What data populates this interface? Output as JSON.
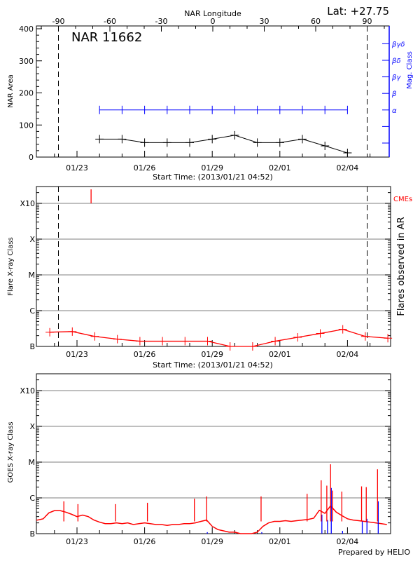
{
  "colors": {
    "area": "#000000",
    "mag_class": "#0000ff",
    "flares": "#ff0000",
    "cme": "#ff0000",
    "goes": "#ff0000",
    "goes_events": "#0000ff",
    "grid": "#999999"
  },
  "header": {
    "lat_label": "Lat: +27.75",
    "prepared_by": "Prepared by HELIO"
  },
  "chart_data": [
    {
      "type": "line",
      "title": "NAR 11662",
      "xlabel": "Start Time: (2013/01/21 04:52)",
      "ylabel": "NAR Area",
      "y2label": "Mag. Class",
      "toplabel": "NAR Longitude",
      "ylim": [
        0,
        400
      ],
      "yticks": [
        "0",
        "100",
        "200",
        "300",
        "400"
      ],
      "xticks": [
        "01/23",
        "01/26",
        "01/29",
        "02/01",
        "02/04"
      ],
      "xtick_dates": [
        "2013-01-23",
        "2013-01-26",
        "2013-01-29",
        "2013-02-01",
        "2013-02-04"
      ],
      "xlim": [
        "2013-01-21T04:52",
        "2013-02-05T20:40"
      ],
      "longitude_ticks": [
        "-90",
        "-60",
        "-30",
        "0",
        "30",
        "60",
        "90"
      ],
      "limb_longitudes": [
        -90,
        90
      ],
      "mag_class_ticks": [
        "α",
        "β",
        "βγ",
        "βδ",
        "βγδ"
      ],
      "x": [
        "2013-01-24T00:00",
        "2013-01-25T00:00",
        "2013-01-26T00:00",
        "2013-01-27T00:00",
        "2013-01-28T00:00",
        "2013-01-29T00:00",
        "2013-01-30T00:00",
        "2013-01-31T00:00",
        "2013-02-01T00:00",
        "2013-02-02T00:00",
        "2013-02-03T00:00",
        "2013-02-04T00:00"
      ],
      "series": [
        {
          "values": [
            56,
            56,
            45,
            45,
            45,
            56,
            68,
            45,
            45,
            56,
            35,
            13
          ]
        },
        {
          "values": [
            "α",
            "α",
            "α",
            "α",
            "α",
            "α",
            "α",
            "α",
            "α",
            "α",
            "α",
            "α"
          ]
        }
      ]
    },
    {
      "type": "line",
      "xlabel": "Start Time: (2013/01/21 04:52)",
      "ylabel": "Flare X-ray Class",
      "y2label": "Flares observed in AR",
      "cme_label": "CMEs",
      "yscale": "log",
      "ylim": [
        1e-07,
        0.003
      ],
      "yticks": [
        "B",
        "C",
        "M",
        "X",
        "X10"
      ],
      "ytick_values": [
        1e-07,
        1e-06,
        1e-05,
        0.0001,
        0.001
      ],
      "xticks": [
        "01/23",
        "01/26",
        "01/29",
        "02/01",
        "02/04"
      ],
      "x": [
        "2013-01-21T19:00",
        "2013-01-22T19:00",
        "2013-01-23T19:00",
        "2013-01-24T19:00",
        "2013-01-25T19:00",
        "2013-01-26T19:00",
        "2013-01-27T19:00",
        "2013-01-28T19:00",
        "2013-01-29T19:00",
        "2013-01-30T19:00",
        "2013-01-31T19:00",
        "2013-02-01T19:00",
        "2013-02-02T19:00",
        "2013-02-03T19:00",
        "2013-02-04T19:00",
        "2013-02-05T19:00"
      ],
      "values": [
        2.5e-07,
        2.6e-07,
        1.9e-07,
        1.6e-07,
        1.4e-07,
        1.4e-07,
        1.4e-07,
        1.4e-07,
        1e-07,
        1e-07,
        1.4e-07,
        1.8e-07,
        2.3e-07,
        3e-07,
        1.9e-07,
        1.7e-07
      ],
      "cmes": [
        "2013-01-23T15:00"
      ]
    },
    {
      "type": "line",
      "ylabel": "GOES X-ray Class",
      "yscale": "log",
      "ylim": [
        1e-07,
        0.003
      ],
      "yticks": [
        "B",
        "C",
        "M",
        "X",
        "X10"
      ],
      "ytick_values": [
        1e-07,
        1e-06,
        1e-05,
        0.0001,
        0.001
      ],
      "xticks": [
        "01/23",
        "01/26",
        "01/29",
        "02/01",
        "02/04"
      ],
      "series_start": "2013-01-21T06:00",
      "series_step_hours": 6,
      "values": [
        2.4e-07,
        2.6e-07,
        3.8e-07,
        4.4e-07,
        4.4e-07,
        4e-07,
        3.5e-07,
        3e-07,
        3.3e-07,
        3e-07,
        2.4e-07,
        2.1e-07,
        1.9e-07,
        1.9e-07,
        2e-07,
        1.9e-07,
        2e-07,
        1.8e-07,
        1.9e-07,
        2e-07,
        1.9e-07,
        1.8e-07,
        1.8e-07,
        1.7e-07,
        1.8e-07,
        1.8e-07,
        1.9e-07,
        1.9e-07,
        2e-07,
        2.2e-07,
        2.4e-07,
        1.6e-07,
        1.3e-07,
        1.2e-07,
        1.1e-07,
        1.1e-07,
        1e-07,
        1e-07,
        1e-07,
        1.1e-07,
        1.6e-07,
        2e-07,
        2.2e-07,
        2.2e-07,
        2.3e-07,
        2.2e-07,
        2.3e-07,
        2.4e-07,
        2.5e-07,
        2.7e-07,
        4.5e-07,
        3.7e-07,
        6e-07,
        4e-07,
        3.2e-07,
        2.6e-07,
        2.4e-07,
        2.3e-07,
        2.2e-07,
        2.1e-07,
        2e-07,
        1.9e-07,
        1.8e-07
      ],
      "peaks": [
        {
          "t": "2013-01-22T10:00",
          "flux": 8e-07
        },
        {
          "t": "2013-01-23T01:00",
          "flux": 6.7e-07
        },
        {
          "t": "2013-01-24T17:00",
          "flux": 6.7e-07
        },
        {
          "t": "2013-01-26T03:00",
          "flux": 7.3e-07
        },
        {
          "t": "2013-01-28T05:00",
          "flux": 9.5e-07
        },
        {
          "t": "2013-01-28T18:00",
          "flux": 1.1e-06
        },
        {
          "t": "2013-01-31T04:00",
          "flux": 1.1e-06
        },
        {
          "t": "2013-02-02T05:00",
          "flux": 1.3e-06
        },
        {
          "t": "2013-02-02T20:00",
          "flux": 3.1e-06
        },
        {
          "t": "2013-02-03T02:00",
          "flux": 2.2e-06
        },
        {
          "t": "2013-02-03T06:00",
          "flux": 8.7e-06
        },
        {
          "t": "2013-02-03T08:00",
          "flux": 1.6e-06
        },
        {
          "t": "2013-02-03T18:00",
          "flux": 1.5e-06
        },
        {
          "t": "2013-02-04T15:00",
          "flux": 2.1e-06
        },
        {
          "t": "2013-02-04T20:00",
          "flux": 2e-06
        },
        {
          "t": "2013-02-05T08:00",
          "flux": 6.3e-06
        }
      ],
      "events": [
        {
          "t": "2013-01-28T18:00",
          "flux": 1.1e-07
        },
        {
          "t": "2013-01-31T04:00",
          "flux": 1.1e-07
        },
        {
          "t": "2013-02-02T20:00",
          "flux": 3.4e-07
        },
        {
          "t": "2013-02-03T02:00",
          "flux": 2.4e-07
        },
        {
          "t": "2013-02-03T06:00",
          "flux": 1.9e-06
        },
        {
          "t": "2013-02-03T18:00",
          "flux": 1.2e-07
        },
        {
          "t": "2013-02-04T15:00",
          "flux": 2.2e-07
        },
        {
          "t": "2013-02-04T20:00",
          "flux": 2.6e-07
        },
        {
          "t": "2013-02-05T08:00",
          "flux": 8e-07
        }
      ]
    }
  ]
}
